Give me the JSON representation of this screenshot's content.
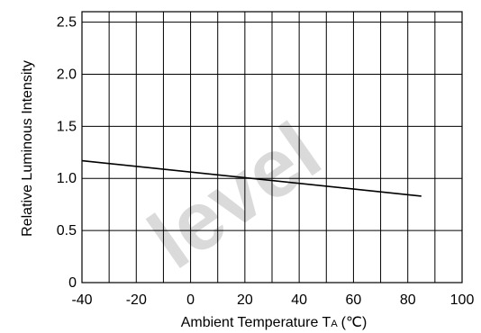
{
  "watermark": "level",
  "chart_data": {
    "type": "line",
    "xlabel_text": "Ambient Temperature T",
    "xlabel_subscript": "A",
    "xlabel_unit": "(℃)",
    "ylabel": "Relative Luminous Intensity",
    "xlim": [
      -40,
      100
    ],
    "ylim": [
      0,
      2.6
    ],
    "x_ticks": [
      -40,
      -20,
      0,
      20,
      40,
      60,
      80,
      100
    ],
    "x_tick_labels": [
      "-40",
      "-20",
      "0",
      "20",
      "40",
      "60",
      "80",
      "100"
    ],
    "x_grid_step": 10,
    "y_ticks": [
      0,
      0.5,
      1.0,
      1.5,
      2.0,
      2.5
    ],
    "y_tick_labels": [
      "0",
      "0.5",
      "1.0",
      "1.5",
      "2.0",
      "2.5"
    ],
    "y_grid": [
      0.5,
      1.0,
      1.5,
      2.0,
      2.5
    ],
    "grid": true,
    "line_color": "#000000",
    "series": [
      {
        "x": [
          -40,
          85
        ],
        "y": [
          1.17,
          0.83
        ]
      }
    ]
  }
}
